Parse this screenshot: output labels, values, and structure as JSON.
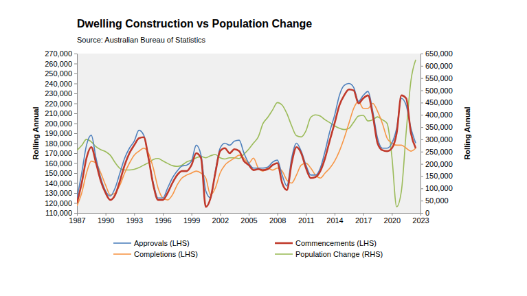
{
  "chart_data": {
    "type": "line",
    "title": "Dwelling Construction vs Population Change",
    "subtitle": "Source: Australian Bureau of Statistics",
    "y_label": "Rolling Annual",
    "y2_label": "Rolling Annual",
    "legend": "bottom",
    "grid": false,
    "x": [
      1987,
      1987.5,
      1988,
      1988.5,
      1989,
      1989.5,
      1990,
      1990.5,
      1991,
      1991.5,
      1992,
      1992.5,
      1993,
      1993.5,
      1994,
      1994.5,
      1995,
      1995.5,
      1996,
      1996.5,
      1997,
      1997.5,
      1998,
      1998.5,
      1999,
      1999.5,
      2000,
      2000.5,
      2001,
      2001.5,
      2002,
      2002.5,
      2003,
      2003.5,
      2004,
      2004.5,
      2005,
      2005.5,
      2006,
      2006.5,
      2007,
      2007.5,
      2008,
      2008.5,
      2009,
      2009.5,
      2010,
      2010.5,
      2011,
      2011.5,
      2012,
      2012.5,
      2013,
      2013.5,
      2014,
      2014.5,
      2015,
      2015.5,
      2016,
      2016.5,
      2017,
      2017.5,
      2018,
      2018.5,
      2019,
      2019.5,
      2020,
      2020.5,
      2021,
      2021.5,
      2022,
      2022.5
    ],
    "xlim": [
      1987,
      2023
    ],
    "xticks": [
      1987,
      1990,
      1993,
      1996,
      1999,
      2002,
      2005,
      2008,
      2011,
      2014,
      2017,
      2020,
      2023
    ],
    "ylim": [
      110000,
      270000
    ],
    "yticks": [
      {
        "value": 110000,
        "label": "110,000"
      },
      {
        "value": 120000,
        "label": "120,000"
      },
      {
        "value": 130000,
        "label": "130,000"
      },
      {
        "value": 140000,
        "label": "140,000"
      },
      {
        "value": 150000,
        "label": "150,000"
      },
      {
        "value": 160000,
        "label": "160,000"
      },
      {
        "value": 170000,
        "label": "170,000"
      },
      {
        "value": 180000,
        "label": "180,000"
      },
      {
        "value": 190000,
        "label": "190,000"
      },
      {
        "value": 200000,
        "label": "200,000"
      },
      {
        "value": 210000,
        "label": "210,000"
      },
      {
        "value": 220000,
        "label": "220,000"
      },
      {
        "value": 230000,
        "label": "230,000"
      },
      {
        "value": 240000,
        "label": "240,000"
      },
      {
        "value": 250000,
        "label": "250,000"
      },
      {
        "value": 260000,
        "label": "260,000"
      },
      {
        "value": 270000,
        "label": "270,000"
      }
    ],
    "y2lim": [
      0,
      650000
    ],
    "y2ticks": [
      0,
      {
        "value": 50000,
        "label": "50,000"
      },
      {
        "value": 100000,
        "label": "100,000"
      },
      {
        "value": 150000,
        "label": "150,000"
      },
      {
        "value": 200000,
        "label": "200,000"
      },
      {
        "value": 250000,
        "label": "250,000"
      },
      {
        "value": 300000,
        "label": "300,000"
      },
      {
        "value": 350000,
        "label": "350,000"
      },
      {
        "value": 400000,
        "label": "400,000"
      },
      {
        "value": 450000,
        "label": "450,000"
      },
      {
        "value": 500000,
        "label": "500,000"
      },
      {
        "value": 550000,
        "label": "550,000"
      },
      {
        "value": 600000,
        "label": "600,000"
      },
      {
        "value": 650000,
        "label": "650,000"
      }
    ],
    "series": [
      {
        "name": "Approvals (LHS)",
        "color": "#4f81bd",
        "axis": "y",
        "values": [
          125000,
          150000,
          178000,
          188000,
          165000,
          145000,
          132000,
          127000,
          135000,
          150000,
          165000,
          175000,
          182000,
          193000,
          188000,
          165000,
          140000,
          125000,
          125000,
          135000,
          145000,
          152000,
          157000,
          158000,
          162000,
          178000,
          168000,
          132000,
          125000,
          152000,
          175000,
          180000,
          178000,
          182000,
          183000,
          170000,
          160000,
          155000,
          155000,
          155000,
          156000,
          161000,
          163000,
          148000,
          137000,
          165000,
          180000,
          172000,
          158000,
          148000,
          148000,
          155000,
          172000,
          192000,
          208000,
          228000,
          238000,
          240000,
          236000,
          222000,
          228000,
          232000,
          212000,
          185000,
          175000,
          175000,
          180000,
          195000,
          225000,
          218000,
          195000,
          180000
        ]
      },
      {
        "name": "Commencements (LHS)",
        "color": "#c0392b",
        "axis": "y",
        "values": [
          120000,
          140000,
          165000,
          176000,
          160000,
          142000,
          130000,
          123000,
          128000,
          142000,
          158000,
          170000,
          178000,
          185000,
          186000,
          165000,
          138000,
          123000,
          123000,
          130000,
          140000,
          148000,
          152000,
          152000,
          158000,
          170000,
          165000,
          116000,
          125000,
          150000,
          172000,
          175000,
          170000,
          174000,
          172000,
          162000,
          158000,
          153000,
          154000,
          153000,
          154000,
          158000,
          160000,
          140000,
          133000,
          160000,
          176000,
          170000,
          155000,
          145000,
          146000,
          152000,
          165000,
          183000,
          200000,
          218000,
          228000,
          234000,
          233000,
          220000,
          225000,
          228000,
          208000,
          180000,
          173000,
          172000,
          175000,
          190000,
          228000,
          225000,
          190000,
          175000
        ]
      },
      {
        "name": "Completions (LHS)",
        "color": "#f79646",
        "axis": "y",
        "values": [
          117000,
          130000,
          150000,
          162000,
          160000,
          150000,
          138000,
          128000,
          130000,
          138000,
          150000,
          160000,
          168000,
          172000,
          175000,
          170000,
          155000,
          135000,
          125000,
          123000,
          128000,
          138000,
          145000,
          148000,
          150000,
          152000,
          150000,
          145000,
          128000,
          135000,
          150000,
          158000,
          162000,
          165000,
          168000,
          165000,
          160000,
          165000,
          155000,
          152000,
          155000,
          153000,
          155000,
          152000,
          143000,
          140000,
          148000,
          158000,
          160000,
          155000,
          148000,
          145000,
          150000,
          155000,
          162000,
          172000,
          185000,
          200000,
          215000,
          222000,
          215000,
          215000,
          220000,
          212000,
          200000,
          185000,
          180000,
          178000,
          178000,
          175000,
          172000,
          175000
        ]
      },
      {
        "name": "Population Change (RHS)",
        "color": "#9bbb59",
        "axis": "y2",
        "values": [
          255000,
          275000,
          300000,
          290000,
          270000,
          258000,
          250000,
          235000,
          205000,
          182000,
          175000,
          175000,
          178000,
          185000,
          195000,
          205000,
          218000,
          222000,
          212000,
          202000,
          193000,
          190000,
          195000,
          208000,
          215000,
          225000,
          230000,
          225000,
          233000,
          238000,
          225000,
          220000,
          225000,
          225000,
          222000,
          240000,
          260000,
          285000,
          310000,
          365000,
          390000,
          420000,
          450000,
          440000,
          405000,
          355000,
          315000,
          310000,
          335000,
          390000,
          400000,
          395000,
          380000,
          368000,
          355000,
          345000,
          340000,
          345000,
          370000,
          395000,
          398000,
          375000,
          380000,
          392000,
          380000,
          365000,
          230000,
          25000,
          90000,
          330000,
          540000,
          625000
        ]
      }
    ]
  }
}
